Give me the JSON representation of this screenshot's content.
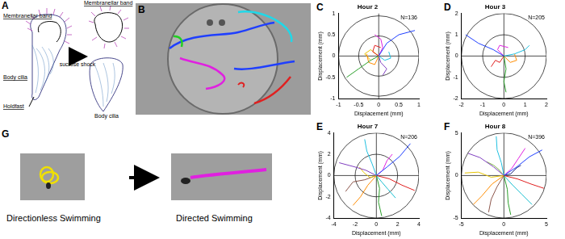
{
  "panels": {
    "A": {
      "letter": "A",
      "band_left": "Membranellar band",
      "body_cilia_left": "Body cilia",
      "holdfast": "Holdfast",
      "arrow_label": "sucrose shock",
      "band_right": "Membranellar band",
      "body_cilia_right": "Body cilia"
    },
    "B": {
      "letter": "B"
    },
    "G": {
      "letter": "G",
      "left": "Directionless Swimming",
      "right": "Directed Swimming"
    }
  },
  "chart_data": [
    {
      "letter": "C",
      "type": "line",
      "title": "Hour 2",
      "annotation": "N=136",
      "x_label": "Displacement (mm)",
      "y_label": "Displacement (mm)",
      "xlim": [
        -1,
        1
      ],
      "xticks": [
        -1,
        -0.5,
        0,
        0.5,
        1
      ],
      "ylim": [
        -1,
        1
      ],
      "yticks": [
        -1,
        -0.5,
        0,
        0.5,
        1
      ],
      "series": [
        {
          "color": "#1f3fff",
          "x": [
            0,
            0.2,
            0.5,
            0.9
          ],
          "values": [
            0,
            0.3,
            0.5,
            0.6
          ]
        },
        {
          "color": "#2ca02c",
          "x": [
            0,
            -0.2,
            -0.5,
            -0.8
          ],
          "values": [
            0,
            -0.1,
            -0.3,
            -0.5
          ]
        },
        {
          "color": "#e020e0",
          "x": [
            0,
            0.1,
            0.05,
            -0.1
          ],
          "values": [
            0,
            0.2,
            0.4,
            0.5
          ]
        },
        {
          "color": "#e02020",
          "x": [
            0,
            -0.15,
            -0.1,
            0.05
          ],
          "values": [
            0,
            0.1,
            0.25,
            0.2
          ]
        },
        {
          "color": "#20c0e0",
          "x": [
            0,
            0.15,
            0.3,
            0.25
          ],
          "values": [
            0,
            -0.1,
            -0.05,
            0.1
          ]
        },
        {
          "color": "#ff8c00",
          "x": [
            0,
            -0.1,
            -0.25,
            -0.3
          ],
          "values": [
            0,
            -0.2,
            -0.15,
            0.05
          ]
        },
        {
          "color": "#8040c0",
          "x": [
            0,
            0.05,
            0.2,
            0.1
          ],
          "values": [
            0,
            -0.15,
            -0.3,
            -0.45
          ]
        },
        {
          "color": "#e6c300",
          "x": [
            0,
            -0.2,
            -0.35,
            -0.2
          ],
          "values": [
            0,
            0.15,
            0.05,
            -0.1
          ]
        }
      ]
    },
    {
      "letter": "D",
      "type": "line",
      "title": "Hour 3",
      "annotation": "N=205",
      "x_label": "Displacement (mm)",
      "y_label": "Displacement (mm)",
      "xlim": [
        -2,
        2
      ],
      "xticks": [
        -2,
        -1,
        0,
        1,
        2
      ],
      "ylim": [
        -2,
        2
      ],
      "yticks": [
        -2,
        -1,
        0,
        1,
        2
      ],
      "series": [
        {
          "color": "#1f3fff",
          "x": [
            0,
            -0.5,
            -1.2,
            -1.8
          ],
          "values": [
            0,
            0.3,
            0.6,
            1.0
          ]
        },
        {
          "color": "#2ca02c",
          "x": [
            0,
            0.1,
            0.0,
            0.1
          ],
          "values": [
            0,
            -0.6,
            -1.2,
            -1.7
          ]
        },
        {
          "color": "#20c0e0",
          "x": [
            0,
            0.5,
            1.0,
            1.2
          ],
          "values": [
            0,
            0.1,
            0.3,
            0.5
          ]
        },
        {
          "color": "#e020e0",
          "x": [
            0,
            -0.3,
            -0.2,
            0.2
          ],
          "values": [
            0,
            0.3,
            0.5,
            0.4
          ]
        },
        {
          "color": "#ff8c00",
          "x": [
            0,
            0.3,
            0.6,
            0.5
          ],
          "values": [
            0,
            -0.3,
            -0.2,
            0.1
          ]
        },
        {
          "color": "#e02020",
          "x": [
            0,
            -0.2,
            -0.4,
            -0.6
          ],
          "values": [
            0,
            -0.3,
            -0.2,
            -0.5
          ]
        }
      ]
    },
    {
      "letter": "E",
      "type": "line",
      "title": "Hour 7",
      "annotation": "N=206",
      "x_label": "Displacement (mm)",
      "y_label": "Displacement (mm)",
      "xlim": [
        -4,
        4
      ],
      "xticks": [
        -4,
        -2,
        0,
        2,
        4
      ],
      "ylim": [
        -4,
        4
      ],
      "yticks": [
        -4,
        -2,
        0,
        2,
        4
      ],
      "series": [
        {
          "color": "#1f3fff",
          "x": [
            0,
            1,
            2.2,
            3.2
          ],
          "values": [
            0,
            0.8,
            1.8,
            3.0
          ]
        },
        {
          "color": "#8040c0",
          "x": [
            0,
            -1,
            -2,
            -3.5
          ],
          "values": [
            0,
            0.5,
            0.8,
            1.2
          ]
        },
        {
          "color": "#2ca02c",
          "x": [
            0,
            0.3,
            0.2,
            0.5
          ],
          "values": [
            0,
            -1.2,
            -2.5,
            -3.8
          ]
        },
        {
          "color": "#ff8c00",
          "x": [
            0,
            -0.8,
            -1.5,
            -2.2
          ],
          "values": [
            0,
            -0.9,
            -2,
            -2.8
          ]
        },
        {
          "color": "#e02020",
          "x": [
            0,
            1.2,
            2.4,
            3.6
          ],
          "values": [
            0,
            -0.3,
            -0.9,
            -1.4
          ]
        },
        {
          "color": "#20c0e0",
          "x": [
            0,
            -0.4,
            -0.9,
            -1.1
          ],
          "values": [
            0,
            1.1,
            2.3,
            3.4
          ]
        },
        {
          "color": "#e020e0",
          "x": [
            0,
            0.6,
            1.0,
            1.5
          ],
          "values": [
            0,
            0.5,
            1.4,
            2.0
          ]
        },
        {
          "color": "#e6c300",
          "x": [
            0,
            -0.6,
            -1.2,
            -1.6
          ],
          "values": [
            0,
            -0.2,
            0.3,
            0.8
          ]
        },
        {
          "color": "#17becf",
          "x": [
            0,
            0.5,
            1.1,
            1.8
          ],
          "values": [
            0,
            -0.6,
            -1.3,
            -2.1
          ]
        },
        {
          "color": "#8c564b",
          "x": [
            0,
            -1.1,
            -2.2,
            -2.9
          ],
          "values": [
            0,
            -0.4,
            -0.6,
            -1.5
          ]
        }
      ]
    },
    {
      "letter": "F",
      "type": "line",
      "title": "Hour 8",
      "annotation": "N=396",
      "x_label": "Displacement (mm)",
      "y_label": "Displacement (mm)",
      "xlim": [
        -5,
        5
      ],
      "xticks": [
        -5,
        0,
        5
      ],
      "ylim": [
        -5,
        5
      ],
      "yticks": [
        -5,
        0,
        5
      ],
      "series": [
        {
          "color": "#1f3fff",
          "x": [
            0,
            1.5,
            3,
            4.5
          ],
          "values": [
            0,
            1,
            2.2,
            3
          ]
        },
        {
          "color": "#8040c0",
          "x": [
            0,
            -1.2,
            -2.8,
            -4.2
          ],
          "values": [
            0,
            1,
            2.1,
            2.6
          ]
        },
        {
          "color": "#2ca02c",
          "x": [
            0,
            0.4,
            0.5,
            0.8
          ],
          "values": [
            0,
            -1.6,
            -3.2,
            -4.6
          ]
        },
        {
          "color": "#ff8c00",
          "x": [
            0,
            -1.4,
            -2.6,
            -3.6
          ],
          "values": [
            0,
            -1,
            -2.4,
            -3.4
          ]
        },
        {
          "color": "#e02020",
          "x": [
            0,
            1.6,
            3.2,
            4.7
          ],
          "values": [
            0,
            -0.4,
            -1,
            -1.5
          ]
        },
        {
          "color": "#20c0e0",
          "x": [
            0,
            -0.3,
            -0.8,
            -0.9
          ],
          "values": [
            0,
            1.5,
            3.0,
            4.6
          ]
        },
        {
          "color": "#e020e0",
          "x": [
            0,
            0.9,
            1.7,
            2.5
          ],
          "values": [
            0,
            0.8,
            2,
            3.2
          ]
        },
        {
          "color": "#e6c300",
          "x": [
            0,
            -1.5,
            -3,
            -4.6
          ],
          "values": [
            0,
            -0.2,
            0.4,
            0.3
          ]
        },
        {
          "color": "#17becf",
          "x": [
            0,
            1,
            2.1,
            3.3
          ],
          "values": [
            0,
            -1.1,
            -2.2,
            -3.4
          ]
        },
        {
          "color": "#8c564b",
          "x": [
            0,
            -0.8,
            -1.5,
            -1.8
          ],
          "values": [
            0,
            -1.3,
            -2.8,
            -4.3
          ]
        },
        {
          "color": "#1a237e",
          "x": [
            0,
            0.8,
            1.5,
            2.0
          ],
          "values": [
            0,
            0.2,
            0.9,
            1.2
          ]
        },
        {
          "color": "#7cb342",
          "x": [
            0,
            -0.6,
            -1.2,
            -2.0
          ],
          "values": [
            0,
            0.7,
            1.2,
            1.6
          ]
        }
      ]
    }
  ]
}
